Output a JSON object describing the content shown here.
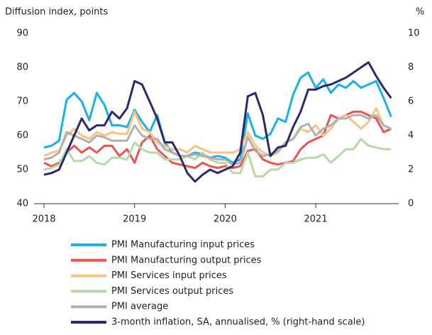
{
  "chart_data": {
    "type": "line",
    "ylabel": "Diffusion index, points",
    "y2label": "%",
    "x": [
      2018,
      2018.083,
      2018.167,
      2018.25,
      2018.333,
      2018.417,
      2018.5,
      2018.583,
      2018.667,
      2018.75,
      2018.833,
      2018.917,
      2019,
      2019.083,
      2019.167,
      2019.25,
      2019.333,
      2019.417,
      2019.5,
      2019.583,
      2019.667,
      2019.75,
      2019.833,
      2019.917,
      2020,
      2020.083,
      2020.167,
      2020.25,
      2020.333,
      2020.417,
      2020.5,
      2020.583,
      2020.667,
      2020.75,
      2020.833,
      2020.917,
      2021,
      2021.083,
      2021.167,
      2021.25,
      2021.333,
      2021.417,
      2021.5,
      2021.583,
      2021.667,
      2021.75,
      2021.833
    ],
    "xlim": [
      2018,
      2021.9
    ],
    "xticks": [
      2018,
      2019,
      2020,
      2021
    ],
    "ylim": [
      40,
      90
    ],
    "yticks": [
      40,
      50,
      60,
      70,
      80,
      90
    ],
    "y2lim": [
      0,
      10
    ],
    "y2ticks": [
      0,
      2,
      4,
      6,
      8,
      10
    ],
    "series": [
      {
        "name": "PMI Manufacturing input prices",
        "color": "#1ab0e8",
        "values": [
          56.5,
          57,
          58.5,
          70.5,
          72.5,
          70,
          64.5,
          72.5,
          69,
          63,
          63,
          62.5,
          67.5,
          64,
          61,
          66,
          58,
          55,
          54,
          54,
          55,
          54.5,
          53.5,
          54,
          53.5,
          52,
          53,
          66.5,
          60,
          59,
          60.5,
          65,
          64,
          72,
          77,
          78.5,
          74,
          76.5,
          72.5,
          75,
          74,
          76,
          74,
          75,
          76,
          71,
          65.5
        ]
      },
      {
        "name": "PMI Manufacturing output prices",
        "color": "#f0524f",
        "values": [
          52,
          51,
          52,
          55,
          57,
          55,
          56.5,
          55,
          57,
          57,
          54,
          56,
          52,
          58,
          60,
          56,
          54,
          52,
          51.5,
          51,
          50.5,
          52,
          51,
          50.5,
          51,
          50.5,
          51,
          55.5,
          56,
          53,
          52,
          51.5,
          52,
          52.5,
          56,
          58,
          59,
          60,
          66,
          65,
          66,
          67,
          67,
          66,
          65,
          61,
          62
        ]
      },
      {
        "name": "PMI Services input prices",
        "color": "#fcc283",
        "values": [
          54,
          55,
          55.5,
          60,
          62,
          60,
          59,
          61,
          60,
          61,
          60.5,
          60.5,
          67,
          62,
          61,
          58,
          57,
          56,
          56,
          55,
          57,
          56,
          55,
          55,
          55,
          55,
          56,
          61,
          57,
          55,
          54,
          55,
          58,
          59,
          62,
          61,
          63,
          60,
          62,
          65,
          66,
          64,
          62,
          64,
          68,
          63,
          62
        ]
      },
      {
        "name": "PMI Services output prices",
        "color": "#b5d9a9",
        "values": [
          50,
          50.5,
          51.5,
          56,
          52.5,
          52.5,
          54,
          52,
          51.5,
          53.5,
          53.5,
          53,
          58,
          56,
          55,
          55,
          53,
          53,
          53,
          54,
          53,
          55,
          53,
          52,
          52,
          49,
          49,
          55,
          48,
          48,
          50,
          50,
          52,
          52,
          53,
          53.5,
          53.5,
          54.5,
          52,
          54,
          56,
          56,
          59,
          57,
          56.5,
          56,
          56
        ]
      },
      {
        "name": "PMI average",
        "color": "#b0b0b0",
        "values": [
          53,
          53.5,
          55,
          61,
          60,
          59,
          58,
          60,
          59.5,
          58.5,
          58.5,
          58.5,
          63,
          60,
          59,
          59,
          56,
          55,
          54,
          54,
          54.5,
          54,
          53.5,
          53,
          53,
          51.5,
          52,
          59.5,
          55.5,
          54,
          54.5,
          55.5,
          58,
          59,
          62.5,
          63.5,
          60,
          62,
          63,
          65,
          65,
          66,
          66,
          65,
          66,
          63,
          62
        ]
      },
      {
        "name": "3-month inflation, SA, annualised, % (right-hand scale)",
        "color": "#2b2a6b",
        "axis": "y2",
        "values": [
          1.7,
          1.8,
          2.0,
          3.0,
          4.0,
          5.0,
          4.3,
          4.6,
          4.6,
          5.4,
          5.0,
          5.6,
          7.2,
          7.0,
          6.0,
          5.0,
          3.6,
          3.6,
          2.8,
          1.8,
          1.3,
          1.7,
          2.0,
          1.8,
          2.0,
          2.2,
          3.0,
          6.3,
          6.5,
          5.2,
          2.8,
          3.3,
          3.4,
          4.5,
          5.4,
          6.7,
          6.7,
          6.9,
          7.0,
          7.2,
          7.4,
          7.7,
          8.0,
          8.3,
          7.5,
          6.8,
          6.2
        ]
      }
    ]
  }
}
